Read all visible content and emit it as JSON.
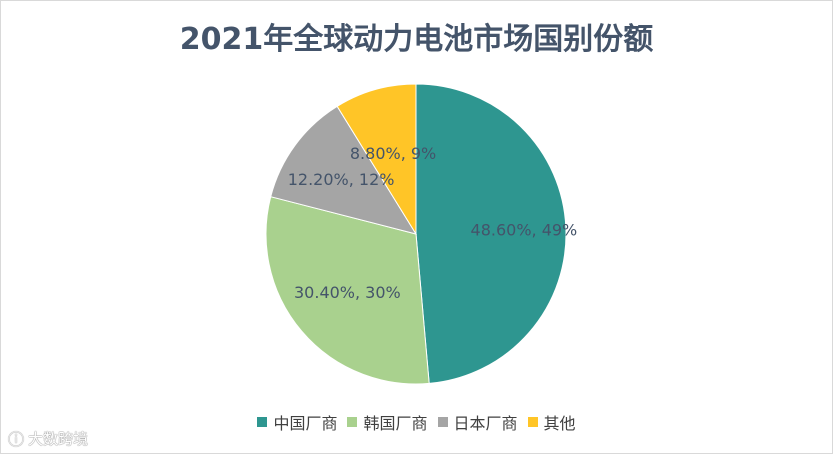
{
  "chart_data": {
    "type": "pie",
    "title": "2021年全球动力电池市场国别份额",
    "categories": [
      "中国厂商",
      "韩国厂商",
      "日本厂商",
      "其他"
    ],
    "values": [
      48.6,
      30.4,
      12.2,
      8.8
    ],
    "data_labels": [
      "48.60%, 49%",
      "30.40%, 30%",
      "12.20%, 12%",
      "8.80%, 9%"
    ],
    "colors": [
      "#2e9690",
      "#a9d18e",
      "#a5a5a5",
      "#ffc527"
    ],
    "start_angle": "12 o'clock",
    "direction": "clockwise",
    "legend_position": "bottom"
  },
  "watermark": {
    "icon": "tuchong-logo-icon",
    "text": "大数跨境"
  }
}
